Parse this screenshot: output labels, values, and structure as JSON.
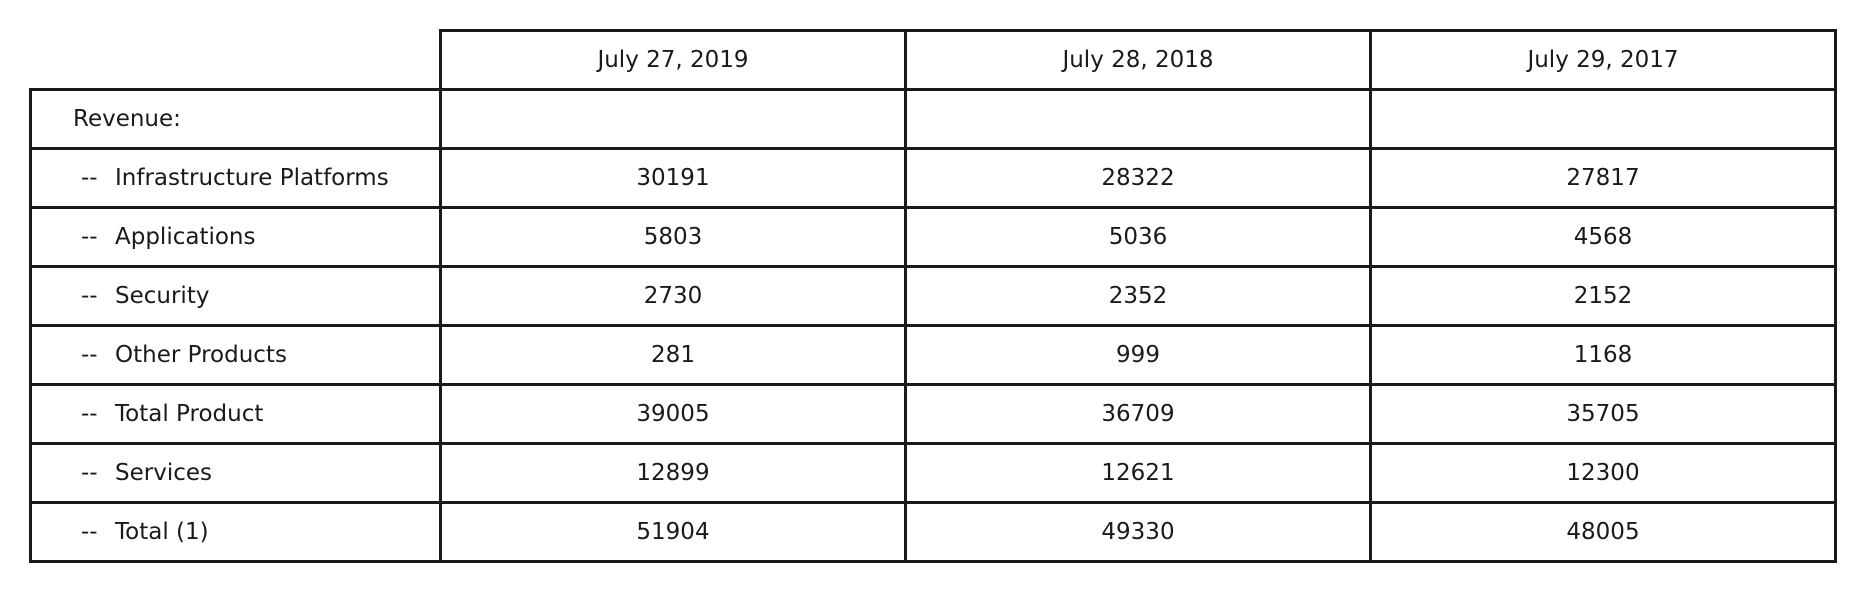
{
  "table": {
    "columns": [
      "July 27, 2019",
      "July 28, 2018",
      "July 29, 2017"
    ],
    "section_label": "Revenue:",
    "row_prefix": "--",
    "rows": [
      {
        "label": "Infrastructure Platforms",
        "values": [
          "30191",
          "28322",
          "27817"
        ]
      },
      {
        "label": "Applications",
        "values": [
          "5803",
          "5036",
          "4568"
        ]
      },
      {
        "label": "Security",
        "values": [
          "2730",
          "2352",
          "2152"
        ]
      },
      {
        "label": "Other Products",
        "values": [
          "281",
          "999",
          "1168"
        ]
      },
      {
        "label": "Total Product",
        "values": [
          "39005",
          "36709",
          "35705"
        ]
      },
      {
        "label": "Services",
        "values": [
          "12899",
          "12621",
          "12300"
        ]
      },
      {
        "label": "Total (1)",
        "values": [
          "51904",
          "49330",
          "48005"
        ]
      }
    ]
  }
}
